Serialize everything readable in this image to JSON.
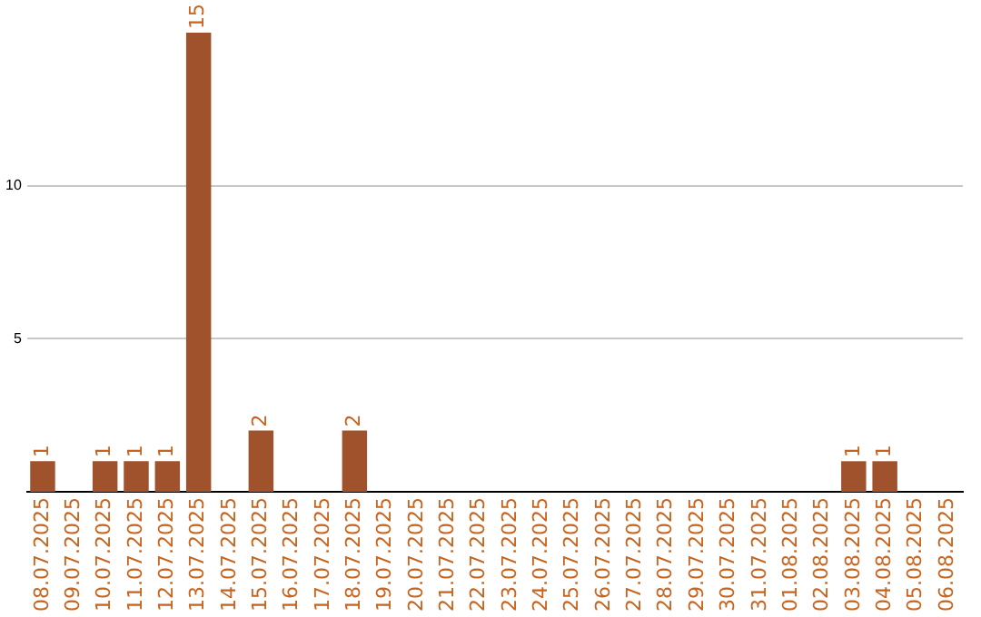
{
  "chart_data": {
    "type": "bar",
    "categories": [
      "08.07.2025",
      "09.07.2025",
      "10.07.2025",
      "11.07.2025",
      "12.07.2025",
      "13.07.2025",
      "14.07.2025",
      "15.07.2025",
      "16.07.2025",
      "17.07.2025",
      "18.07.2025",
      "19.07.2025",
      "20.07.2025",
      "21.07.2025",
      "22.07.2025",
      "23.07.2025",
      "24.07.2025",
      "25.07.2025",
      "26.07.2025",
      "27.07.2025",
      "28.07.2025",
      "29.07.2025",
      "30.07.2025",
      "31.07.2025",
      "01.08.2025",
      "02.08.2025",
      "03.08.2025",
      "04.08.2025",
      "05.08.2025",
      "06.08.2025"
    ],
    "values": [
      1,
      0,
      1,
      1,
      1,
      15,
      0,
      2,
      0,
      0,
      2,
      0,
      0,
      0,
      0,
      0,
      0,
      0,
      0,
      0,
      0,
      0,
      0,
      0,
      0,
      0,
      1,
      1,
      0,
      0
    ],
    "value_labels": [
      "1",
      null,
      "1",
      "1",
      "1",
      "15",
      null,
      "2",
      null,
      null,
      "2",
      null,
      null,
      null,
      null,
      null,
      null,
      null,
      null,
      null,
      null,
      null,
      null,
      null,
      null,
      null,
      "1",
      "1",
      null,
      null
    ],
    "color": "#a0522d",
    "ylim": [
      0,
      15
    ],
    "yticks": [
      5,
      10
    ],
    "grid": "y",
    "legend": false
  }
}
